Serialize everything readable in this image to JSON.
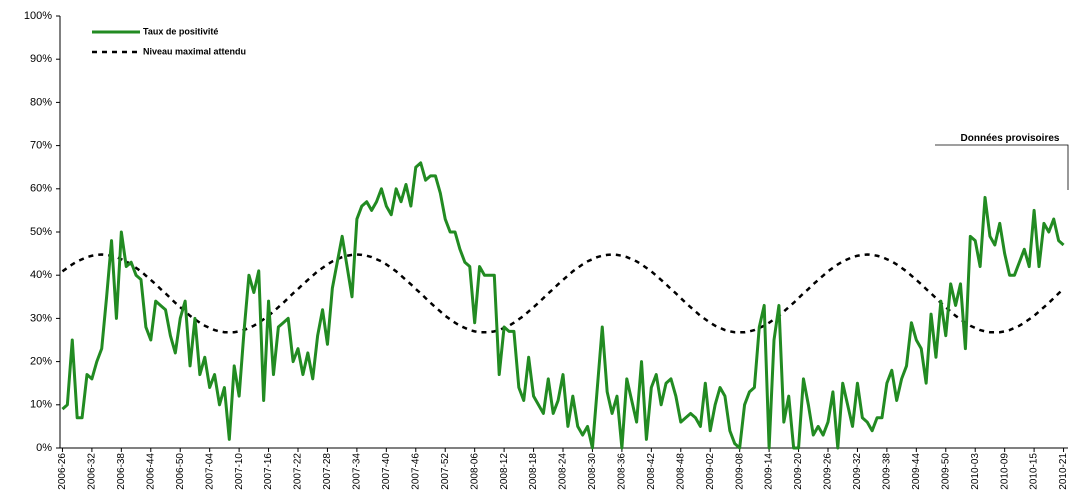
{
  "chart_data": {
    "type": "line",
    "annotation": "Données provisoires",
    "categories": [
      "2006-26",
      null,
      null,
      null,
      null,
      null,
      "2006-32",
      null,
      null,
      null,
      null,
      null,
      "2006-38",
      null,
      null,
      null,
      null,
      null,
      "2006-44",
      null,
      null,
      null,
      null,
      null,
      "2006-50",
      null,
      null,
      null,
      null,
      null,
      "2007-04",
      null,
      null,
      null,
      null,
      null,
      "2007-10",
      null,
      null,
      null,
      null,
      null,
      "2007-16",
      null,
      null,
      null,
      null,
      null,
      "2007-22",
      null,
      null,
      null,
      null,
      null,
      "2007-28",
      null,
      null,
      null,
      null,
      null,
      "2007-34",
      null,
      null,
      null,
      null,
      null,
      "2007-40",
      null,
      null,
      null,
      null,
      null,
      "2007-46",
      null,
      null,
      null,
      null,
      null,
      "2007-52",
      null,
      null,
      null,
      null,
      null,
      "2008-06",
      null,
      null,
      null,
      null,
      null,
      "2008-12",
      null,
      null,
      null,
      null,
      null,
      "2008-18",
      null,
      null,
      null,
      null,
      null,
      "2008-24",
      null,
      null,
      null,
      null,
      null,
      "2008-30",
      null,
      null,
      null,
      null,
      null,
      "2008-36",
      null,
      null,
      null,
      null,
      null,
      "2008-42",
      null,
      null,
      null,
      null,
      null,
      "2008-48",
      null,
      null,
      null,
      null,
      null,
      "2009-02",
      null,
      null,
      null,
      null,
      null,
      "2009-08",
      null,
      null,
      null,
      null,
      null,
      "2009-14",
      null,
      null,
      null,
      null,
      null,
      "2009-20",
      null,
      null,
      null,
      null,
      null,
      "2009-26",
      null,
      null,
      null,
      null,
      null,
      "2009-32",
      null,
      null,
      null,
      null,
      null,
      "2009-38",
      null,
      null,
      null,
      null,
      null,
      "2009-44",
      null,
      null,
      null,
      null,
      null,
      "2009-50",
      null,
      null,
      null,
      null,
      null,
      "2010-03",
      null,
      null,
      null,
      null,
      null,
      "2010-09",
      null,
      null,
      null,
      null,
      null,
      "2010-15",
      null,
      null,
      null,
      null,
      null,
      "2010-21"
    ],
    "series": [
      {
        "name": "Taux de positivité",
        "color": "#228b22",
        "line_style": "solid",
        "values": [
          9,
          10,
          25,
          7,
          7,
          17,
          16,
          20,
          23,
          35,
          48,
          30,
          50,
          42,
          43,
          40,
          39,
          28,
          25,
          34,
          33,
          32,
          26,
          22,
          30,
          34,
          19,
          30,
          17,
          21,
          14,
          17,
          10,
          14,
          2,
          19,
          12,
          27,
          40,
          36,
          41,
          11,
          34,
          17,
          28,
          29,
          30,
          20,
          23,
          17,
          22,
          16,
          26,
          32,
          24,
          37,
          43,
          49,
          42,
          35,
          53,
          56,
          57,
          55,
          57,
          60,
          56,
          54,
          60,
          57,
          61,
          56,
          65,
          66,
          62,
          63,
          63,
          59,
          53,
          50,
          50,
          46,
          43,
          42,
          29,
          42,
          40,
          40,
          40,
          17,
          28,
          27,
          27,
          14,
          11,
          21,
          12,
          10,
          8,
          16,
          8,
          11,
          17,
          5,
          12,
          5,
          3,
          5,
          0,
          14,
          28,
          13,
          8,
          12,
          0,
          16,
          11,
          6,
          20,
          2,
          14,
          17,
          10,
          15,
          16,
          12,
          6,
          7,
          8,
          7,
          5,
          15,
          4,
          10,
          14,
          12,
          4,
          1,
          0,
          10,
          13,
          14,
          28,
          33,
          0,
          25,
          33,
          6,
          12,
          0,
          0,
          16,
          10,
          3,
          5,
          3,
          6,
          13,
          0,
          15,
          10,
          5,
          15,
          7,
          6,
          4,
          7,
          7,
          15,
          18,
          11,
          16,
          19,
          29,
          25,
          23,
          15,
          31,
          21,
          34,
          26,
          38,
          33,
          38,
          23,
          49,
          48,
          42,
          58,
          49,
          47,
          52,
          45,
          40,
          40,
          43,
          46,
          42,
          55,
          42,
          52,
          50,
          53,
          48,
          47
        ]
      },
      {
        "name": "Niveau maximal attendu",
        "color": "#000000",
        "line_style": "dashed",
        "values": [
          40.9,
          41.7,
          42.5,
          43.2,
          43.7,
          44.2,
          44.5,
          44.7,
          44.8,
          44.7,
          44.5,
          44.2,
          43.7,
          43.2,
          42.5,
          41.7,
          40.9,
          39.9,
          38.9,
          37.9,
          36.8,
          35.8,
          34.7,
          33.6,
          32.6,
          31.6,
          30.6,
          29.8,
          29.0,
          28.3,
          27.8,
          27.3,
          27.0,
          26.8,
          26.8,
          26.8,
          27.0,
          27.3,
          27.8,
          28.3,
          29.0,
          29.8,
          30.6,
          31.6,
          32.6,
          33.6,
          34.7,
          35.8,
          36.8,
          37.9,
          38.9,
          39.9,
          40.9,
          41.7,
          42.5,
          43.2,
          43.7,
          44.2,
          44.5,
          44.7,
          44.8,
          44.7,
          44.5,
          44.2,
          43.7,
          43.2,
          42.5,
          41.7,
          40.9,
          39.9,
          38.9,
          37.9,
          36.8,
          35.8,
          34.7,
          33.6,
          32.6,
          31.6,
          30.6,
          29.8,
          29.0,
          28.3,
          27.8,
          27.3,
          27.0,
          26.8,
          26.8,
          26.8,
          27.0,
          27.3,
          27.8,
          28.3,
          29.0,
          29.8,
          30.6,
          31.6,
          32.6,
          33.6,
          34.7,
          35.8,
          36.8,
          37.9,
          38.9,
          39.9,
          40.9,
          41.7,
          42.5,
          43.2,
          43.7,
          44.2,
          44.5,
          44.7,
          44.8,
          44.7,
          44.5,
          44.2,
          43.7,
          43.2,
          42.5,
          41.7,
          40.9,
          39.9,
          38.9,
          37.9,
          36.8,
          35.8,
          34.7,
          33.6,
          32.6,
          31.6,
          30.6,
          29.8,
          29.0,
          28.3,
          27.8,
          27.3,
          27.0,
          26.8,
          26.8,
          26.8,
          27.0,
          27.3,
          27.8,
          28.3,
          29.0,
          29.8,
          30.6,
          31.6,
          32.6,
          33.6,
          34.7,
          35.8,
          36.8,
          37.9,
          38.9,
          39.9,
          40.9,
          41.7,
          42.5,
          43.2,
          43.7,
          44.2,
          44.5,
          44.7,
          44.8,
          44.7,
          44.5,
          44.2,
          43.7,
          43.2,
          42.5,
          41.7,
          40.9,
          39.9,
          38.9,
          37.9,
          36.8,
          35.8,
          34.7,
          33.6,
          32.6,
          31.6,
          30.6,
          29.8,
          29.0,
          28.3,
          27.8,
          27.3,
          27.0,
          26.8,
          26.8,
          26.8,
          27.0,
          27.3,
          27.8,
          28.3,
          29.0,
          29.8,
          30.6,
          31.6,
          32.6,
          33.6,
          34.7,
          35.8,
          36.8
        ]
      }
    ],
    "ylim": [
      0,
      100
    ],
    "yticks": [
      {
        "value": 0,
        "label": "0%"
      },
      {
        "value": 10,
        "label": "10%"
      },
      {
        "value": 20,
        "label": "20%"
      },
      {
        "value": 30,
        "label": "30%"
      },
      {
        "value": 40,
        "label": "40%"
      },
      {
        "value": 50,
        "label": "50%"
      },
      {
        "value": 60,
        "label": "60%"
      },
      {
        "value": 70,
        "label": "70%"
      },
      {
        "value": 80,
        "label": "80%"
      },
      {
        "value": 90,
        "label": "90%"
      },
      {
        "value": 100,
        "label": "100%"
      }
    ],
    "grid": false
  }
}
